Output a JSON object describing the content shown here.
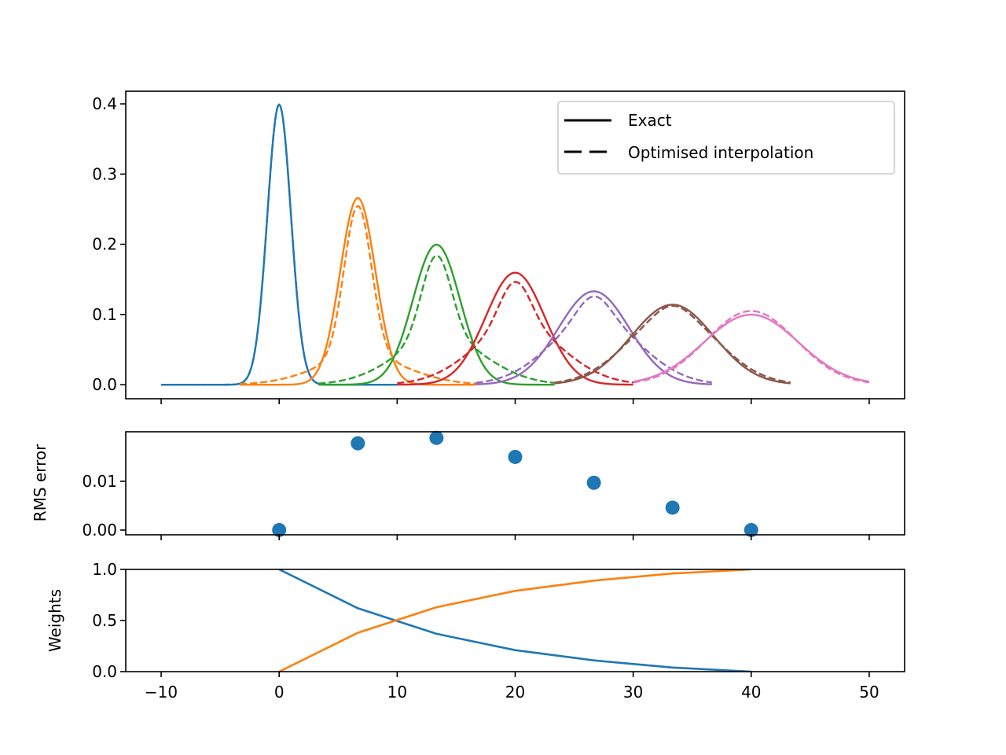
{
  "chart_data": [
    {
      "type": "line",
      "panel": "densities",
      "xlim": [
        -13,
        53
      ],
      "ylim": [
        -0.02,
        0.418
      ],
      "xticks": [
        -10,
        0,
        10,
        20,
        30,
        40,
        50
      ],
      "yticks": [
        0.0,
        0.1,
        0.2,
        0.3,
        0.4
      ],
      "ytick_labels": [
        "0.0",
        "0.1",
        "0.2",
        "0.3",
        "0.4"
      ],
      "xlabel": "",
      "ylabel": "",
      "legend": {
        "placement": "top-right",
        "entries": [
          {
            "label": "Exact",
            "style": "solid"
          },
          {
            "label": "Optimised interpolation",
            "style": "dashed"
          }
        ]
      },
      "series": [
        {
          "name": "density-0",
          "color": "#1f77b4",
          "mean": 0,
          "sigma": 1,
          "weight_first": 1.0,
          "x_range": [
            -10,
            10
          ]
        },
        {
          "name": "density-1",
          "color": "#ff7f0e",
          "mean": 6.667,
          "sigma": 1.5,
          "weight_first": 0.62,
          "x_range": [
            -3.333,
            16.667
          ]
        },
        {
          "name": "density-2",
          "color": "#2ca02c",
          "mean": 13.333,
          "sigma": 2,
          "weight_first": 0.37,
          "x_range": [
            3.333,
            23.333
          ]
        },
        {
          "name": "density-3",
          "color": "#d62728",
          "mean": 20,
          "sigma": 2.5,
          "weight_first": 0.21,
          "x_range": [
            10,
            30
          ]
        },
        {
          "name": "density-4",
          "color": "#9467bd",
          "mean": 26.667,
          "sigma": 3,
          "weight_first": 0.11,
          "x_range": [
            16.667,
            36.667
          ]
        },
        {
          "name": "density-5",
          "color": "#8c564b",
          "mean": 33.333,
          "sigma": 3.5,
          "weight_first": 0.04,
          "x_range": [
            23.333,
            43.333
          ]
        },
        {
          "name": "density-6",
          "color": "#e377c2",
          "mean": 40,
          "sigma": 4,
          "weight_first": 0.0,
          "x_range": [
            30,
            50
          ]
        }
      ],
      "endpoint_sigmas": [
        1,
        4
      ]
    },
    {
      "type": "scatter",
      "panel": "rms-error",
      "xlim": [
        -13,
        53
      ],
      "ylim": [
        -0.00097,
        0.02016
      ],
      "xticks": [
        -10,
        0,
        10,
        20,
        30,
        40,
        50
      ],
      "yticks": [
        0.0,
        0.01
      ],
      "ytick_labels": [
        "0.00",
        "0.01"
      ],
      "ylabel": "RMS error",
      "color": "#1f77b4",
      "x": [
        0,
        6.667,
        13.333,
        20,
        26.667,
        33.333,
        40
      ],
      "y": [
        0.0,
        0.0178,
        0.0189,
        0.015,
        0.0097,
        0.0046,
        0.0
      ]
    },
    {
      "type": "line",
      "panel": "weights",
      "xlim": [
        -13,
        53
      ],
      "ylim": [
        0.0,
        1.0
      ],
      "xticks": [
        -10,
        0,
        10,
        20,
        30,
        40,
        50
      ],
      "xtick_labels": [
        "−10",
        "0",
        "10",
        "20",
        "30",
        "40",
        "50"
      ],
      "yticks": [
        0.0,
        0.5,
        1.0
      ],
      "ytick_labels": [
        "0.0",
        "0.5",
        "1.0"
      ],
      "ylabel": "Weights",
      "x": [
        0,
        6.667,
        13.333,
        20,
        26.667,
        33.333,
        40
      ],
      "series": [
        {
          "name": "weight-first",
          "color": "#1f77b4",
          "values": [
            1.0,
            0.62,
            0.37,
            0.21,
            0.11,
            0.04,
            0.0
          ]
        },
        {
          "name": "weight-last",
          "color": "#ff7f0e",
          "values": [
            0.0,
            0.38,
            0.63,
            0.79,
            0.89,
            0.96,
            1.0
          ]
        }
      ]
    }
  ]
}
